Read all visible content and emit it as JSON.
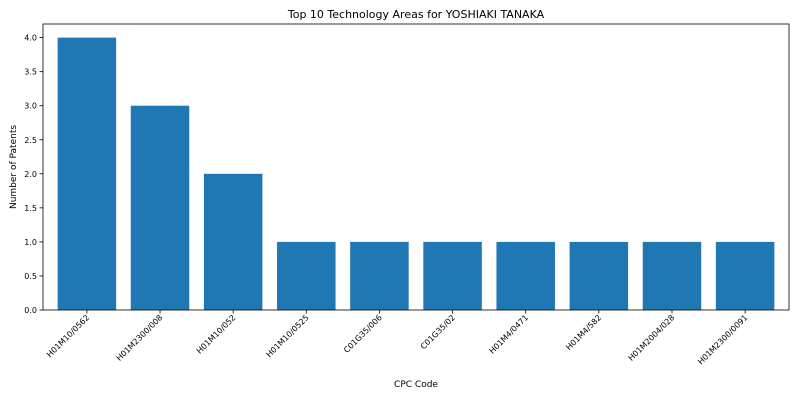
{
  "chart_data": {
    "type": "bar",
    "title": "Top 10 Technology Areas for YOSHIAKI TANAKA",
    "xlabel": "CPC Code",
    "ylabel": "Number of Patents",
    "categories": [
      "H01M10/0562",
      "H01M2300/008",
      "H01M10/052",
      "H01M10/0525",
      "C01G35/006",
      "C01G35/02",
      "H01M4/0471",
      "H01M4/582",
      "H01M2004/028",
      "H01M2300/0091"
    ],
    "values": [
      4,
      3,
      2,
      1,
      1,
      1,
      1,
      1,
      1,
      1
    ],
    "ylim": [
      0,
      4.2
    ],
    "yticks": [
      0.0,
      0.5,
      1.0,
      1.5,
      2.0,
      2.5,
      3.0,
      3.5,
      4.0
    ],
    "grid": false,
    "bar_color": "#1f77b4"
  }
}
